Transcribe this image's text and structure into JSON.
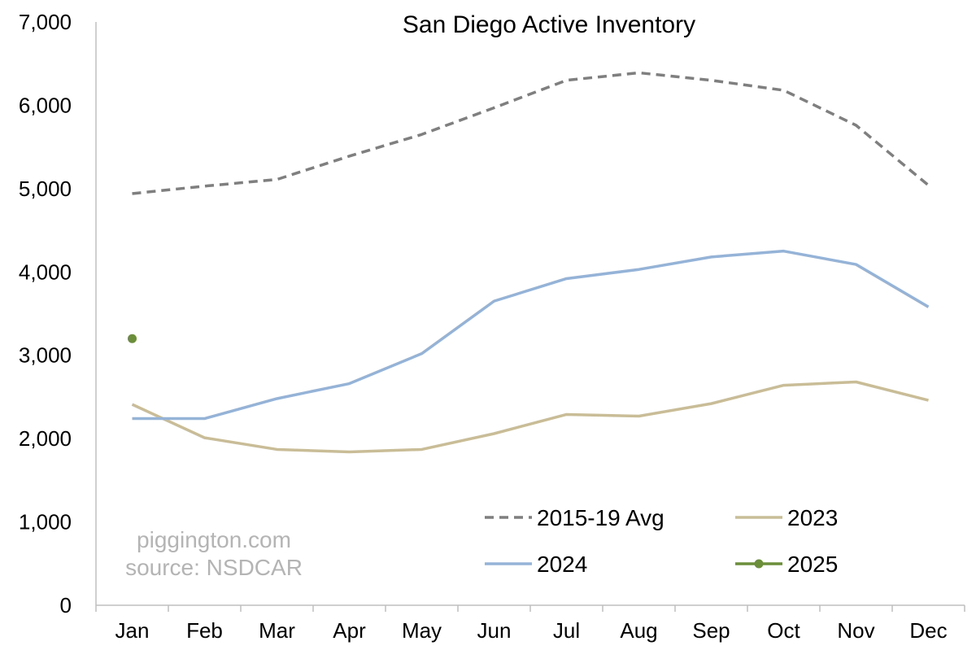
{
  "chart_data": {
    "type": "line",
    "title": "San Diego Active Inventory",
    "categories": [
      "Jan",
      "Feb",
      "Mar",
      "Apr",
      "May",
      "Jun",
      "Jul",
      "Aug",
      "Sep",
      "Oct",
      "Nov",
      "Dec"
    ],
    "ylim": [
      0,
      7000
    ],
    "yticks": [
      0,
      1000,
      2000,
      3000,
      4000,
      5000,
      6000,
      7000
    ],
    "ytick_labels": [
      "0",
      "1,000",
      "2,000",
      "3,000",
      "4,000",
      "5,000",
      "6,000",
      "7,000"
    ],
    "grid": false,
    "legend_position": "bottom-right",
    "series": [
      {
        "name": "2015-19 Avg",
        "color": "#7f7f7f",
        "style": "dashed",
        "values": [
          4940,
          5030,
          5110,
          5390,
          5650,
          5970,
          6300,
          6390,
          6300,
          6180,
          5760,
          5040
        ]
      },
      {
        "name": "2023",
        "color": "#c9bd98",
        "style": "solid",
        "values": [
          2410,
          2010,
          1870,
          1840,
          1870,
          2060,
          2290,
          2270,
          2420,
          2640,
          2680,
          2460
        ]
      },
      {
        "name": "2024",
        "color": "#95b3d7",
        "style": "solid",
        "values": [
          2240,
          2240,
          2480,
          2660,
          3020,
          3650,
          3920,
          4030,
          4180,
          4250,
          4090,
          3580
        ]
      },
      {
        "name": "2025",
        "color": "#6b8e3a",
        "style": "marker",
        "values": [
          3200,
          null,
          null,
          null,
          null,
          null,
          null,
          null,
          null,
          null,
          null,
          null
        ]
      }
    ],
    "watermark": [
      "piggington.com",
      "source: NSDCAR"
    ]
  }
}
